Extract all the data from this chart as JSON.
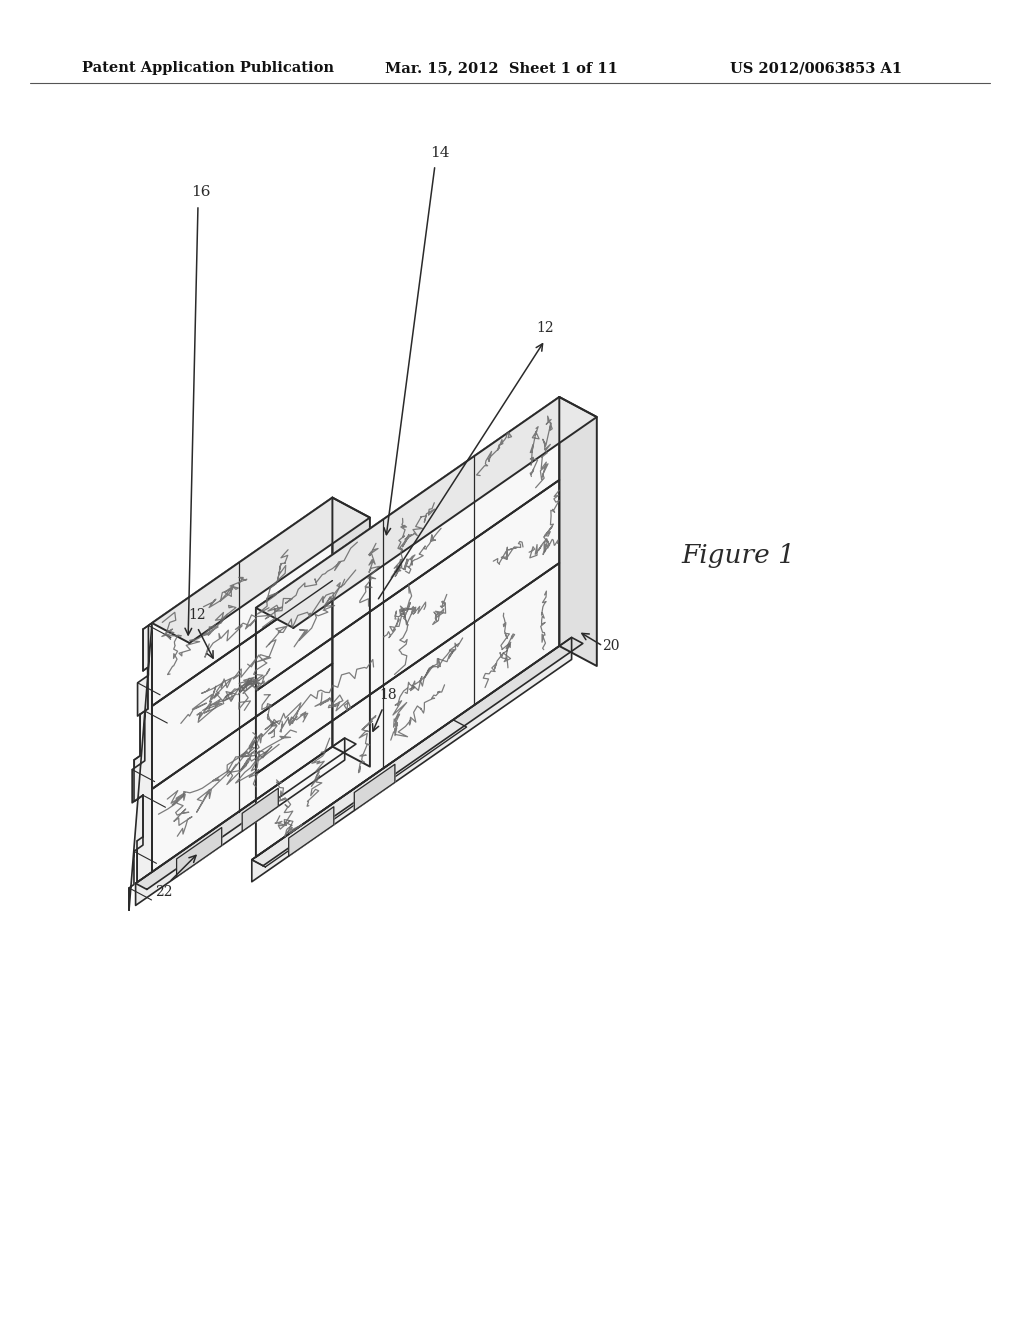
{
  "bg_color": "#ffffff",
  "header_text": "Patent Application Publication",
  "header_date": "Mar. 15, 2012  Sheet 1 of 11",
  "header_patent": "US 2012/0063853 A1",
  "figure_label": "Figure 1",
  "line_color": "#2a2a2a",
  "fill_white": "#ffffff",
  "fill_light": "#f0f0f0",
  "fill_mid": "#e0e0e0",
  "fill_dark": "#cccccc"
}
